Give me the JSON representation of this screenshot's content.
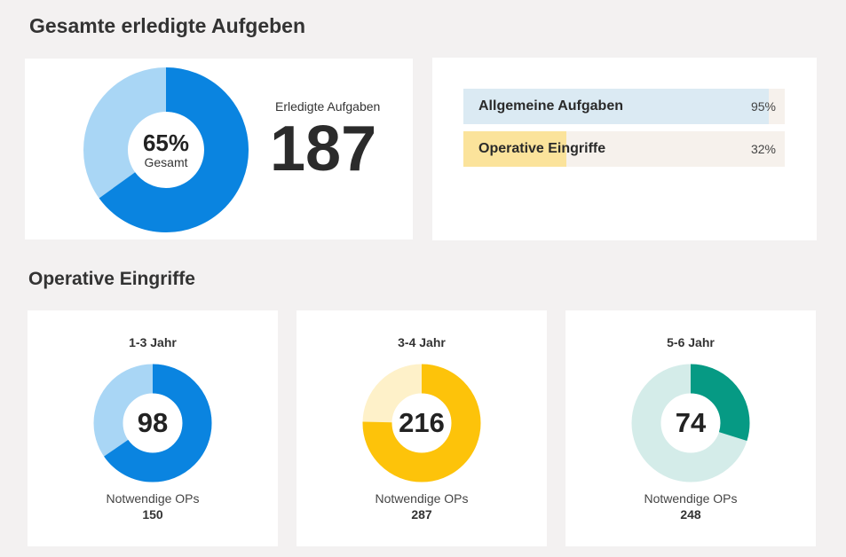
{
  "sections": {
    "total_title": "Gesamte erledigte Aufgeben",
    "ops_title": "Operative Eingriffe"
  },
  "total": {
    "percent": 65,
    "percent_text": "65%",
    "percent_label": "Gesamt",
    "done_label": "Erledigte Aufgaben",
    "done_value": "187",
    "colors": {
      "main": "#0a84e0",
      "light": "#a9d6f5"
    }
  },
  "progress_bars": [
    {
      "label": "Allgemeine Aufgaben",
      "percent": 95,
      "percent_text": "95%",
      "color": "#dbeaf3"
    },
    {
      "label": "Operative Eingriffe",
      "percent": 32,
      "percent_text": "32%",
      "color": "#fbe39b"
    }
  ],
  "ops": [
    {
      "label": "1-3 Jahr",
      "value": 98,
      "value_text": "98",
      "required_label": "Notwendige OPs",
      "required": 150,
      "required_text": "150",
      "color": "#0a84e0",
      "light": "#a9d6f5"
    },
    {
      "label": "3-4 Jahr",
      "value": 216,
      "value_text": "216",
      "required_label": "Notwendige OPs",
      "required": 287,
      "required_text": "287",
      "color": "#fdc30a",
      "light": "#fef1c9"
    },
    {
      "label": "5-6 Jahr",
      "value": 74,
      "value_text": "74",
      "required_label": "Notwendige OPs",
      "required": 248,
      "required_text": "248",
      "color": "#069a84",
      "light": "#d4ece9"
    }
  ]
}
